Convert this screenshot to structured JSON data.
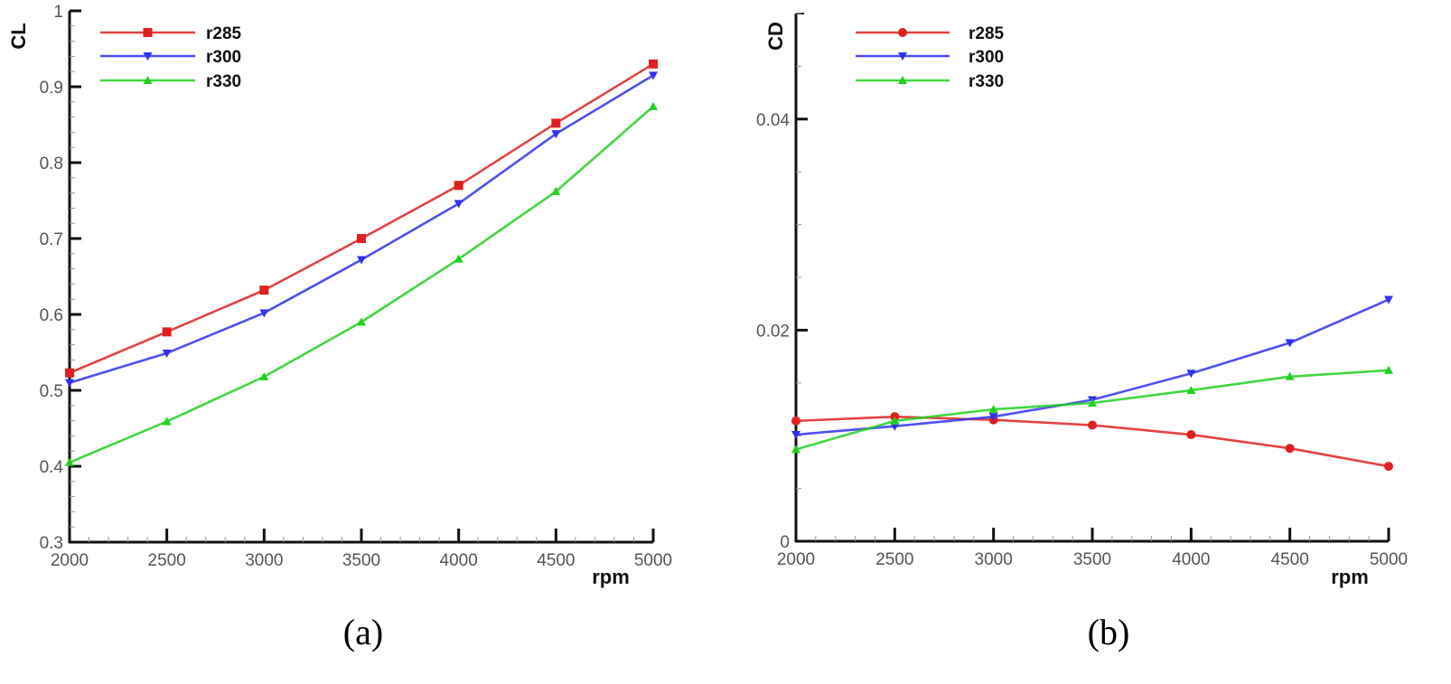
{
  "chart_data": [
    {
      "type": "line",
      "panel": "(a)",
      "title": "",
      "xlabel": "rpm",
      "ylabel": "CL",
      "xlim": [
        2000,
        5000
      ],
      "ylim": [
        0.3,
        1
      ],
      "x": [
        2000,
        2500,
        3000,
        3500,
        4000,
        4500,
        5000
      ],
      "x_ticks": [
        "2000",
        "2500",
        "3000",
        "3500",
        "4000",
        "4500",
        "5000"
      ],
      "y_ticks": [
        {
          "value": 0.3,
          "label": "0.3"
        },
        {
          "value": 0.4,
          "label": "0.4"
        },
        {
          "value": 0.5,
          "label": "0.5"
        },
        {
          "value": 0.6,
          "label": "0.6"
        },
        {
          "value": 0.7,
          "label": "0.7"
        },
        {
          "value": 0.8,
          "label": "0.8"
        },
        {
          "value": 0.9,
          "label": "0.9"
        },
        {
          "value": 1,
          "label": "1"
        }
      ],
      "y_minor_step": 0.02,
      "x_minor_step": 100,
      "grid": false,
      "legend_position": "top-left",
      "series": [
        {
          "name": "r285",
          "color": "#e02020",
          "marker": "square",
          "values": [
            0.523,
            0.577,
            0.632,
            0.7,
            0.77,
            0.852,
            0.93
          ]
        },
        {
          "name": "r300",
          "color": "#3030f0",
          "marker": "triangle-down",
          "values": [
            0.51,
            0.549,
            0.602,
            0.672,
            0.746,
            0.838,
            0.915
          ]
        },
        {
          "name": "r330",
          "color": "#20d020",
          "marker": "triangle-up",
          "values": [
            0.405,
            0.459,
            0.518,
            0.59,
            0.673,
            0.762,
            0.874
          ]
        }
      ]
    },
    {
      "type": "line",
      "panel": "(b)",
      "title": "",
      "xlabel": "rpm",
      "ylabel": "CD",
      "xlim": [
        2000,
        5000
      ],
      "ylim": [
        0,
        0.05
      ],
      "x": [
        2000,
        2500,
        3000,
        3500,
        4000,
        4500,
        5000
      ],
      "x_ticks": [
        "2000",
        "2500",
        "3000",
        "3500",
        "4000",
        "4500",
        "5000"
      ],
      "y_ticks": [
        {
          "value": 0,
          "label": "0"
        },
        {
          "value": 0.02,
          "label": "0.02"
        },
        {
          "value": 0.04,
          "label": "0.04"
        }
      ],
      "y_minor_step": 0.005,
      "x_minor_step": 100,
      "grid": false,
      "legend_position": "top-left",
      "series": [
        {
          "name": "r285",
          "color": "#e02020",
          "marker": "circle",
          "values": [
            0.0114,
            0.0118,
            0.0115,
            0.011,
            0.0101,
            0.0088,
            0.0071
          ]
        },
        {
          "name": "r300",
          "color": "#3030f0",
          "marker": "triangle-down",
          "values": [
            0.0101,
            0.0109,
            0.0118,
            0.0134,
            0.0159,
            0.0188,
            0.0229
          ]
        },
        {
          "name": "r330",
          "color": "#20d020",
          "marker": "triangle-up",
          "values": [
            0.0087,
            0.0114,
            0.0125,
            0.0131,
            0.0143,
            0.0156,
            0.0162
          ]
        }
      ]
    }
  ],
  "captions": [
    "(a)",
    "(b)"
  ]
}
